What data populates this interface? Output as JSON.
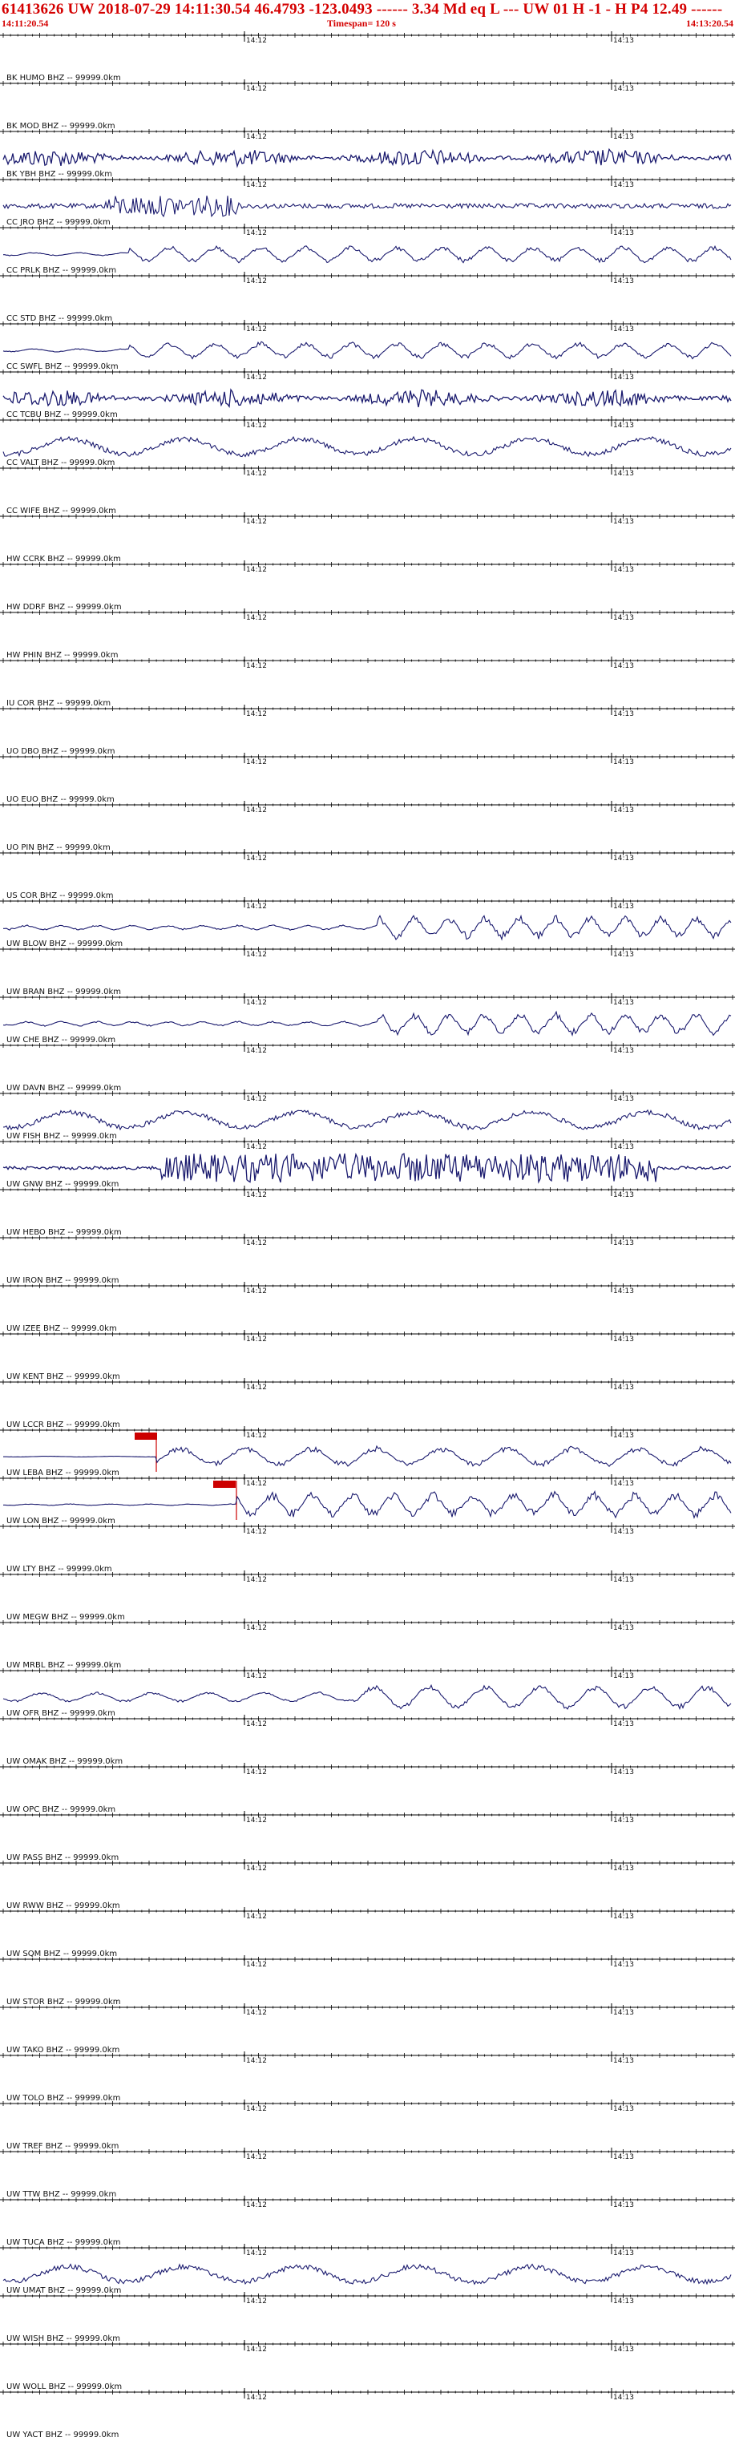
{
  "header": {
    "event_line": "61413626 UW 2018-07-29 14:11:30.54   46.4793 -123.0493 ------   3.34 Md  eq  L ---       UW 01  H  -1  -  H P4   12.49 ------",
    "start_time": "14:11:20.54",
    "timespan": "Timespan= 120 s",
    "end_time": "14:13:20.54"
  },
  "time_marks": [
    "14:12",
    "14:13"
  ],
  "colors": {
    "header_text": "#d40000",
    "trace": "#1a1a6e",
    "axis": "#000000",
    "pick": "#cc0000"
  },
  "traces": [
    {
      "label": "BK HUMO BHZ -- 99999.0km",
      "activity": "none"
    },
    {
      "label": "BK MOD BHZ -- 99999.0km",
      "activity": "none"
    },
    {
      "label": "BK YBH BHZ -- 99999.0km",
      "activity": "dense"
    },
    {
      "label": "CC JRO BHZ -- 99999.0km",
      "activity": "burst"
    },
    {
      "label": "CC PRLK BHZ -- 99999.0km",
      "activity": "medium"
    },
    {
      "label": "CC STD BHZ -- 99999.0km",
      "activity": "none"
    },
    {
      "label": "CC SWFL BHZ -- 99999.0km",
      "activity": "medium"
    },
    {
      "label": "CC TCBU BHZ -- 99999.0km",
      "activity": "dense"
    },
    {
      "label": "CC VALT BHZ -- 99999.0km",
      "activity": "slow"
    },
    {
      "label": "CC WIFE BHZ -- 99999.0km",
      "activity": "none"
    },
    {
      "label": "HW CCRK BHZ -- 99999.0km",
      "activity": "none"
    },
    {
      "label": "HW DDRF BHZ -- 99999.0km",
      "activity": "none"
    },
    {
      "label": "HW PHIN BHZ -- 99999.0km",
      "activity": "none"
    },
    {
      "label": "IU COR BHZ -- 99999.0km",
      "activity": "none"
    },
    {
      "label": "UO DBO BHZ -- 99999.0km",
      "activity": "none"
    },
    {
      "label": "UO EUO BHZ -- 99999.0km",
      "activity": "none"
    },
    {
      "label": "UO PIN BHZ -- 99999.0km",
      "activity": "none"
    },
    {
      "label": "US COR BHZ -- 99999.0km",
      "activity": "none"
    },
    {
      "label": "UW BLOW BHZ -- 99999.0km",
      "activity": "late"
    },
    {
      "label": "UW BRAN BHZ -- 99999.0km",
      "activity": "none"
    },
    {
      "label": "UW CHE BHZ -- 99999.0km",
      "activity": "late"
    },
    {
      "label": "UW DAVN BHZ -- 99999.0km",
      "activity": "none"
    },
    {
      "label": "UW FISH BHZ -- 99999.0km",
      "activity": "slow"
    },
    {
      "label": "UW GNW BHZ -- 99999.0km",
      "activity": "noise"
    },
    {
      "label": "UW HEBO BHZ -- 99999.0km",
      "activity": "none"
    },
    {
      "label": "UW IRON BHZ -- 99999.0km",
      "activity": "none"
    },
    {
      "label": "UW IZEE BHZ -- 99999.0km",
      "activity": "none"
    },
    {
      "label": "UW KENT BHZ -- 99999.0km",
      "activity": "none"
    },
    {
      "label": "UW LCCR BHZ -- 99999.0km",
      "activity": "none"
    },
    {
      "label": "UW LEBA BHZ -- 99999.0km",
      "activity": "pick1"
    },
    {
      "label": "UW LON BHZ -- 99999.0km",
      "activity": "pick2"
    },
    {
      "label": "UW LTY BHZ -- 99999.0km",
      "activity": "none"
    },
    {
      "label": "UW MEGW BHZ -- 99999.0km",
      "activity": "none"
    },
    {
      "label": "UW MRBL BHZ -- 99999.0km",
      "activity": "none"
    },
    {
      "label": "UW OFR BHZ -- 99999.0km",
      "activity": "wave"
    },
    {
      "label": "UW OMAK BHZ -- 99999.0km",
      "activity": "none"
    },
    {
      "label": "UW OPC BHZ -- 99999.0km",
      "activity": "none"
    },
    {
      "label": "UW PASS BHZ -- 99999.0km",
      "activity": "none"
    },
    {
      "label": "UW RWW BHZ -- 99999.0km",
      "activity": "none"
    },
    {
      "label": "UW SQM BHZ -- 99999.0km",
      "activity": "none"
    },
    {
      "label": "UW STOR BHZ -- 99999.0km",
      "activity": "none"
    },
    {
      "label": "UW TAKO BHZ -- 99999.0km",
      "activity": "none"
    },
    {
      "label": "UW TOLO BHZ -- 99999.0km",
      "activity": "none"
    },
    {
      "label": "UW TREF BHZ -- 99999.0km",
      "activity": "none"
    },
    {
      "label": "UW TTW BHZ -- 99999.0km",
      "activity": "none"
    },
    {
      "label": "UW TUCA BHZ -- 99999.0km",
      "activity": "none"
    },
    {
      "label": "UW UMAT BHZ -- 99999.0km",
      "activity": "slow"
    },
    {
      "label": "UW WISH BHZ -- 99999.0km",
      "activity": "none"
    },
    {
      "label": "UW WOLL BHZ -- 99999.0km",
      "activity": "none"
    },
    {
      "label": "UW YACT BHZ -- 99999.0km",
      "activity": "none"
    }
  ]
}
